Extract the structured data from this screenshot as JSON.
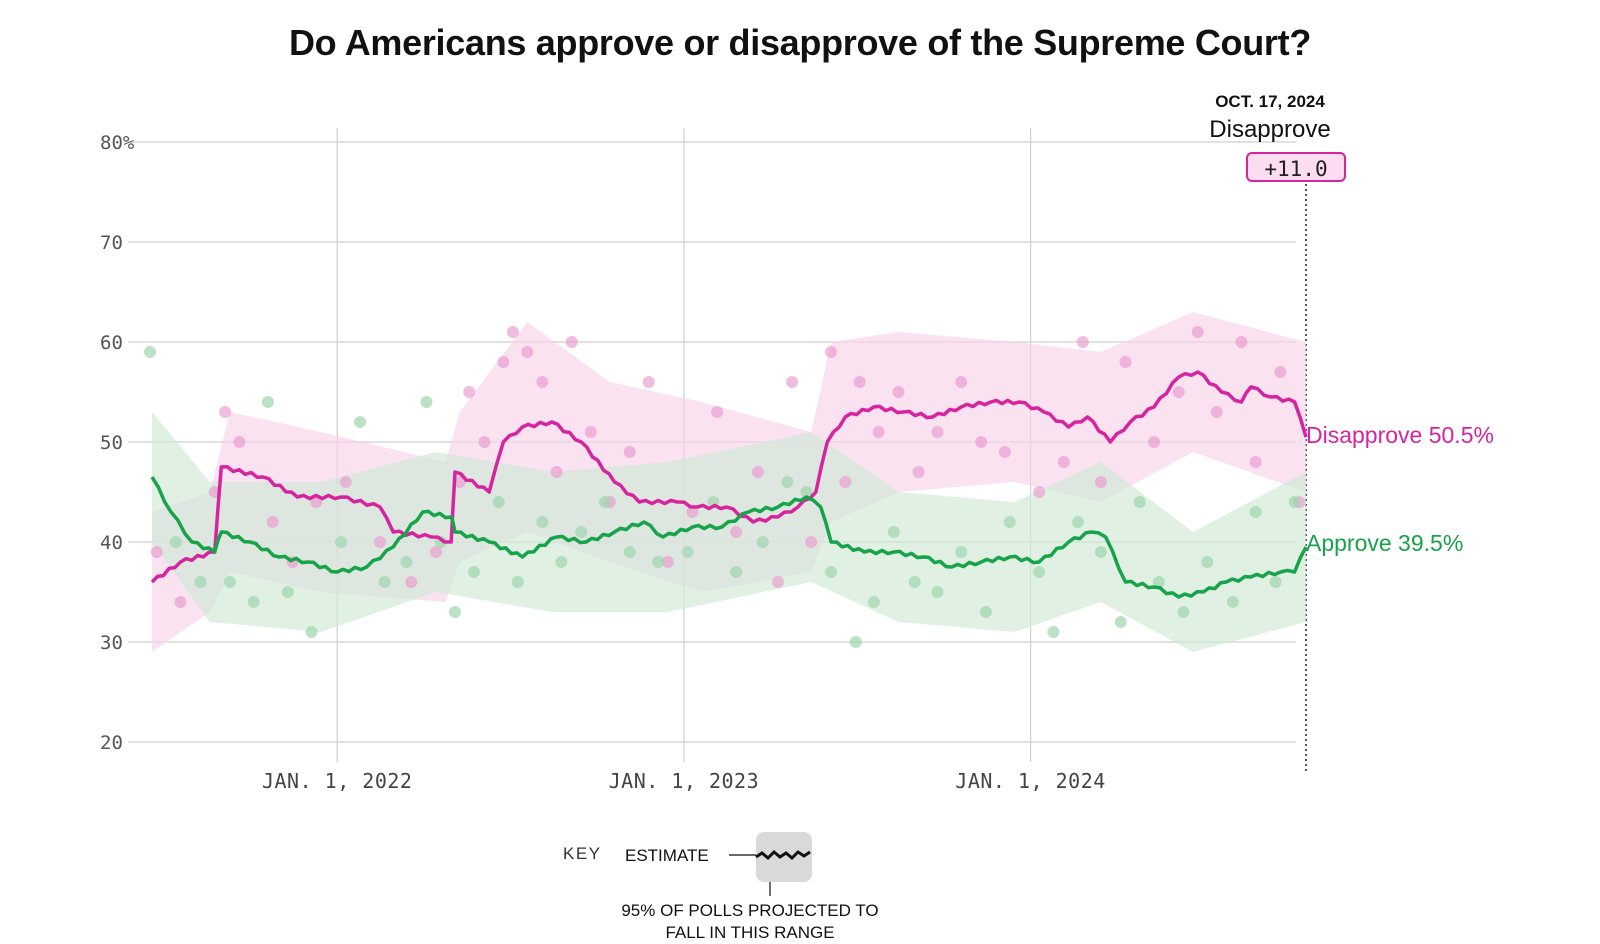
{
  "title": "Do Americans approve or disapprove of the Supreme Court?",
  "annotation": {
    "date": "OCT. 17, 2024",
    "leader": "Disapprove",
    "margin": "+11.0"
  },
  "end_labels": {
    "disapprove": "Disapprove 50.5%",
    "approve": "Approve 39.5%"
  },
  "key": {
    "label": "KEY",
    "estimate": "ESTIMATE",
    "range": "95% OF POLLS PROJECTED TO FALL IN THIS RANGE"
  },
  "colors": {
    "disapprove": "#d6249f",
    "approve": "#17a34a",
    "disapprove_band": "#f8d3ea",
    "approve_band": "#cfe9d6",
    "grid": "#d0d0d0"
  },
  "chart_data": {
    "type": "line",
    "title": "Do Americans approve or disapprove of the Supreme Court?",
    "xlabel": "",
    "ylabel": "",
    "ylim": [
      20,
      82
    ],
    "xlim": [
      "2021-06-15",
      "2024-10-17"
    ],
    "y_ticks": [
      "80%",
      "70",
      "60",
      "50",
      "40",
      "30",
      "20"
    ],
    "y_tick_values": [
      80,
      70,
      60,
      50,
      40,
      30,
      20
    ],
    "x_ticks": [
      "JAN. 1, 2022",
      "JAN. 1, 2023",
      "JAN. 1, 2024"
    ],
    "x_tick_dates": [
      "2022-01-01",
      "2023-01-01",
      "2024-01-01"
    ],
    "grid": true,
    "legend": "direct labels at right end",
    "series": [
      {
        "name": "Disapprove",
        "color": "#d6249f",
        "points": [
          [
            "2021-06-20",
            36.0
          ],
          [
            "2021-07-20",
            38.0
          ],
          [
            "2021-08-25",
            39.0
          ],
          [
            "2021-09-01",
            47.5
          ],
          [
            "2021-10-15",
            46.5
          ],
          [
            "2021-11-20",
            44.5
          ],
          [
            "2022-01-05",
            44.5
          ],
          [
            "2022-02-15",
            43.5
          ],
          [
            "2022-03-01",
            41.0
          ],
          [
            "2022-04-10",
            40.5
          ],
          [
            "2022-05-01",
            40.0
          ],
          [
            "2022-05-05",
            47.0
          ],
          [
            "2022-06-10",
            45.0
          ],
          [
            "2022-06-25",
            50.0
          ],
          [
            "2022-07-15",
            51.5
          ],
          [
            "2022-08-15",
            52.0
          ],
          [
            "2022-09-15",
            50.0
          ],
          [
            "2022-10-20",
            46.0
          ],
          [
            "2022-11-15",
            44.0
          ],
          [
            "2022-12-25",
            44.0
          ],
          [
            "2023-01-15",
            43.5
          ],
          [
            "2023-02-15",
            43.5
          ],
          [
            "2023-03-15",
            42.0
          ],
          [
            "2023-04-10",
            42.5
          ],
          [
            "2023-05-01",
            43.5
          ],
          [
            "2023-05-20",
            45.0
          ],
          [
            "2023-06-01",
            50.0
          ],
          [
            "2023-06-20",
            52.5
          ],
          [
            "2023-07-20",
            53.5
          ],
          [
            "2023-08-20",
            53.0
          ],
          [
            "2023-09-20",
            52.5
          ],
          [
            "2023-10-20",
            53.5
          ],
          [
            "2023-11-20",
            54.0
          ],
          [
            "2023-12-20",
            54.0
          ],
          [
            "2024-01-15",
            53.0
          ],
          [
            "2024-02-10",
            51.5
          ],
          [
            "2024-03-01",
            52.5
          ],
          [
            "2024-03-25",
            50.0
          ],
          [
            "2024-04-15",
            52.0
          ],
          [
            "2024-05-10",
            53.5
          ],
          [
            "2024-06-05",
            56.5
          ],
          [
            "2024-06-25",
            57.0
          ],
          [
            "2024-07-20",
            55.0
          ],
          [
            "2024-08-10",
            54.0
          ],
          [
            "2024-08-20",
            55.5
          ],
          [
            "2024-09-10",
            54.5
          ],
          [
            "2024-10-05",
            54.0
          ],
          [
            "2024-10-17",
            50.5
          ]
        ]
      },
      {
        "name": "Approve",
        "color": "#17a34a",
        "points": [
          [
            "2021-06-20",
            46.5
          ],
          [
            "2021-07-10",
            43.0
          ],
          [
            "2021-08-01",
            40.0
          ],
          [
            "2021-08-25",
            39.0
          ],
          [
            "2021-09-01",
            41.0
          ],
          [
            "2021-10-01",
            40.0
          ],
          [
            "2021-11-01",
            38.5
          ],
          [
            "2021-12-01",
            38.0
          ],
          [
            "2022-01-01",
            37.0
          ],
          [
            "2022-02-01",
            37.5
          ],
          [
            "2022-03-01",
            39.5
          ],
          [
            "2022-04-01",
            43.0
          ],
          [
            "2022-05-01",
            42.5
          ],
          [
            "2022-05-05",
            41.0
          ],
          [
            "2022-06-10",
            40.0
          ],
          [
            "2022-07-15",
            38.5
          ],
          [
            "2022-08-20",
            40.5
          ],
          [
            "2022-09-20",
            40.0
          ],
          [
            "2022-10-20",
            41.0
          ],
          [
            "2022-11-20",
            42.0
          ],
          [
            "2022-12-10",
            40.5
          ],
          [
            "2023-01-10",
            41.5
          ],
          [
            "2023-02-10",
            41.5
          ],
          [
            "2023-03-10",
            43.0
          ],
          [
            "2023-04-10",
            43.5
          ],
          [
            "2023-05-10",
            44.5
          ],
          [
            "2023-05-25",
            43.5
          ],
          [
            "2023-06-05",
            40.0
          ],
          [
            "2023-07-10",
            39.0
          ],
          [
            "2023-08-10",
            39.0
          ],
          [
            "2023-09-10",
            38.5
          ],
          [
            "2023-10-10",
            37.5
          ],
          [
            "2023-11-10",
            38.0
          ],
          [
            "2023-12-10",
            38.5
          ],
          [
            "2024-01-10",
            38.0
          ],
          [
            "2024-02-10",
            40.0
          ],
          [
            "2024-03-05",
            41.0
          ],
          [
            "2024-03-20",
            40.5
          ],
          [
            "2024-04-10",
            36.0
          ],
          [
            "2024-05-10",
            35.5
          ],
          [
            "2024-06-05",
            34.5
          ],
          [
            "2024-07-01",
            35.0
          ],
          [
            "2024-07-25",
            36.0
          ],
          [
            "2024-08-20",
            36.5
          ],
          [
            "2024-09-20",
            37.0
          ],
          [
            "2024-10-05",
            37.0
          ],
          [
            "2024-10-17",
            39.5
          ]
        ]
      }
    ],
    "uncertainty_bands": [
      {
        "name": "Disapprove",
        "points": [
          [
            "2021-06-20",
            29,
            43
          ],
          [
            "2021-08-20",
            33,
            45
          ],
          [
            "2021-09-10",
            37,
            53
          ],
          [
            "2021-12-15",
            35,
            51
          ],
          [
            "2022-04-25",
            34,
            48
          ],
          [
            "2022-05-10",
            38,
            53
          ],
          [
            "2022-07-20",
            41,
            62
          ],
          [
            "2022-10-15",
            38,
            56
          ],
          [
            "2023-01-20",
            35,
            54
          ],
          [
            "2023-05-15",
            37,
            51
          ],
          [
            "2023-06-05",
            42,
            60
          ],
          [
            "2023-08-15",
            45,
            61
          ],
          [
            "2023-12-15",
            46,
            60
          ],
          [
            "2024-03-15",
            44,
            59
          ],
          [
            "2024-06-20",
            49,
            63
          ],
          [
            "2024-10-17",
            45,
            60
          ]
        ]
      },
      {
        "name": "Approve",
        "points": [
          [
            "2021-06-20",
            40,
            53
          ],
          [
            "2021-08-20",
            32,
            46
          ],
          [
            "2021-12-15",
            31,
            46
          ],
          [
            "2022-04-15",
            35,
            49
          ],
          [
            "2022-08-15",
            33,
            47
          ],
          [
            "2022-12-15",
            33,
            48
          ],
          [
            "2023-05-15",
            36,
            51
          ],
          [
            "2023-08-15",
            32,
            45
          ],
          [
            "2023-12-15",
            31,
            44
          ],
          [
            "2024-03-15",
            34,
            48
          ],
          [
            "2024-06-20",
            29,
            41
          ],
          [
            "2024-10-17",
            32,
            47
          ]
        ]
      }
    ],
    "polls": [
      {
        "name": "Disapprove",
        "points": [
          [
            "2021-06-25",
            39
          ],
          [
            "2021-07-20",
            34
          ],
          [
            "2021-08-25",
            45
          ],
          [
            "2021-09-05",
            53
          ],
          [
            "2021-09-20",
            50
          ],
          [
            "2021-10-25",
            42
          ],
          [
            "2021-11-15",
            38
          ],
          [
            "2021-12-10",
            44
          ],
          [
            "2022-01-10",
            46
          ],
          [
            "2022-02-15",
            40
          ],
          [
            "2022-03-20",
            36
          ],
          [
            "2022-04-15",
            39
          ],
          [
            "2022-05-10",
            46
          ],
          [
            "2022-05-20",
            55
          ],
          [
            "2022-06-05",
            50
          ],
          [
            "2022-06-25",
            58
          ],
          [
            "2022-07-05",
            61
          ],
          [
            "2022-07-20",
            59
          ],
          [
            "2022-08-05",
            56
          ],
          [
            "2022-08-20",
            47
          ],
          [
            "2022-09-05",
            60
          ],
          [
            "2022-09-25",
            51
          ],
          [
            "2022-10-15",
            44
          ],
          [
            "2022-11-05",
            49
          ],
          [
            "2022-11-25",
            56
          ],
          [
            "2022-12-15",
            38
          ],
          [
            "2023-01-10",
            43
          ],
          [
            "2023-02-05",
            53
          ],
          [
            "2023-02-25",
            41
          ],
          [
            "2023-03-20",
            47
          ],
          [
            "2023-04-10",
            36
          ],
          [
            "2023-04-25",
            56
          ],
          [
            "2023-05-15",
            40
          ],
          [
            "2023-06-05",
            59
          ],
          [
            "2023-06-20",
            46
          ],
          [
            "2023-07-05",
            56
          ],
          [
            "2023-07-25",
            51
          ],
          [
            "2023-08-15",
            55
          ],
          [
            "2023-09-05",
            47
          ],
          [
            "2023-09-25",
            51
          ],
          [
            "2023-10-20",
            56
          ],
          [
            "2023-11-10",
            50
          ],
          [
            "2023-12-05",
            49
          ],
          [
            "2024-01-10",
            45
          ],
          [
            "2024-02-05",
            48
          ],
          [
            "2024-02-25",
            60
          ],
          [
            "2024-03-15",
            46
          ],
          [
            "2024-04-10",
            58
          ],
          [
            "2024-05-10",
            50
          ],
          [
            "2024-06-05",
            55
          ],
          [
            "2024-06-25",
            61
          ],
          [
            "2024-07-15",
            53
          ],
          [
            "2024-08-10",
            60
          ],
          [
            "2024-08-25",
            48
          ],
          [
            "2024-09-20",
            57
          ],
          [
            "2024-10-10",
            44
          ]
        ]
      },
      {
        "name": "Approve",
        "points": [
          [
            "2021-06-18",
            59
          ],
          [
            "2021-07-15",
            40
          ],
          [
            "2021-08-10",
            36
          ],
          [
            "2021-09-10",
            36
          ],
          [
            "2021-10-05",
            34
          ],
          [
            "2021-10-20",
            54
          ],
          [
            "2021-11-10",
            35
          ],
          [
            "2021-12-05",
            31
          ],
          [
            "2022-01-05",
            40
          ],
          [
            "2022-01-25",
            52
          ],
          [
            "2022-02-20",
            36
          ],
          [
            "2022-03-15",
            38
          ],
          [
            "2022-04-05",
            54
          ],
          [
            "2022-04-20",
            40
          ],
          [
            "2022-05-05",
            33
          ],
          [
            "2022-05-25",
            37
          ],
          [
            "2022-06-20",
            44
          ],
          [
            "2022-07-10",
            36
          ],
          [
            "2022-08-05",
            42
          ],
          [
            "2022-08-25",
            38
          ],
          [
            "2022-09-15",
            41
          ],
          [
            "2022-10-10",
            44
          ],
          [
            "2022-11-05",
            39
          ],
          [
            "2022-12-05",
            38
          ],
          [
            "2023-01-05",
            39
          ],
          [
            "2023-02-01",
            44
          ],
          [
            "2023-02-25",
            37
          ],
          [
            "2023-03-25",
            40
          ],
          [
            "2023-04-20",
            46
          ],
          [
            "2023-05-10",
            45
          ],
          [
            "2023-06-05",
            37
          ],
          [
            "2023-07-01",
            30
          ],
          [
            "2023-07-20",
            34
          ],
          [
            "2023-08-10",
            41
          ],
          [
            "2023-09-01",
            36
          ],
          [
            "2023-09-25",
            35
          ],
          [
            "2023-10-20",
            39
          ],
          [
            "2023-11-15",
            33
          ],
          [
            "2023-12-10",
            42
          ],
          [
            "2024-01-10",
            37
          ],
          [
            "2024-01-25",
            31
          ],
          [
            "2024-02-20",
            42
          ],
          [
            "2024-03-15",
            39
          ],
          [
            "2024-04-05",
            32
          ],
          [
            "2024-04-25",
            44
          ],
          [
            "2024-05-15",
            36
          ],
          [
            "2024-06-10",
            33
          ],
          [
            "2024-07-05",
            38
          ],
          [
            "2024-08-01",
            34
          ],
          [
            "2024-08-25",
            43
          ],
          [
            "2024-09-15",
            36
          ],
          [
            "2024-10-05",
            44
          ]
        ]
      }
    ]
  }
}
